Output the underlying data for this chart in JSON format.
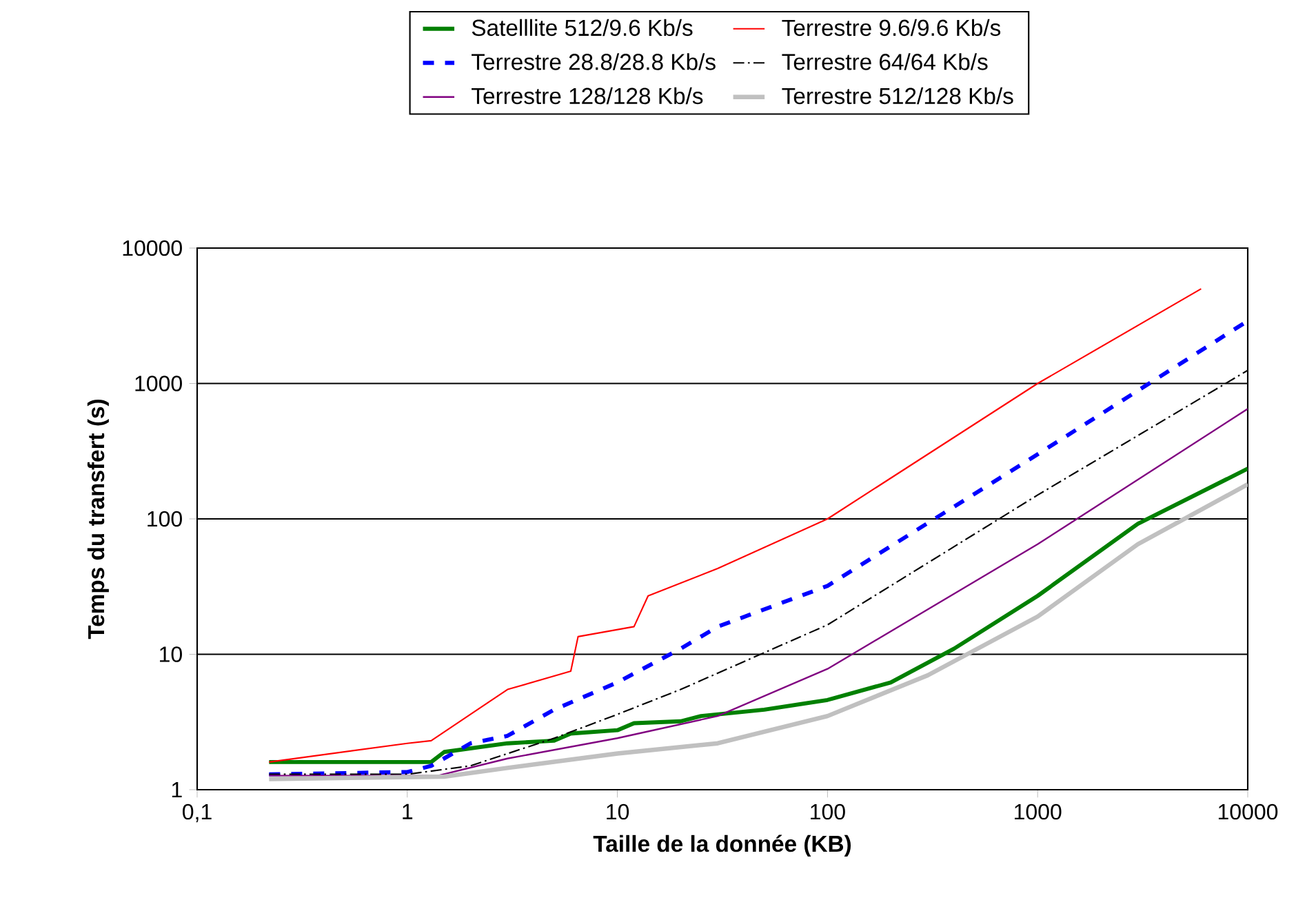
{
  "chart_data": {
    "type": "line",
    "xlabel": "Taille de la donnée (KB)",
    "ylabel": "Temps du transfert (s)",
    "log": "xy",
    "grid": "y",
    "legend": "top",
    "marker": "none",
    "xlim": [
      0.1,
      10000
    ],
    "ylim": [
      1,
      10000
    ],
    "xticks": [
      {
        "value": 0.1,
        "label": "0,1"
      },
      1,
      10,
      100,
      1000,
      10000
    ],
    "yticks": [
      1,
      10,
      100,
      1000,
      10000
    ],
    "series": [
      {
        "name": "Satelllite 512/9.6 Kb/s",
        "color": "#008000",
        "line_style": "solid",
        "x": [
          0.22,
          1.3,
          1.5,
          3,
          5,
          6,
          10,
          12,
          20,
          25,
          50,
          100,
          200,
          400,
          1000,
          3000,
          10000
        ],
        "values": [
          1.6,
          1.6,
          1.9,
          2.2,
          2.3,
          2.6,
          2.75,
          3.1,
          3.2,
          3.5,
          3.9,
          4.6,
          6.2,
          11,
          27,
          92,
          235
        ]
      },
      {
        "name": "Terrestre 9.6/9.6 Kb/s",
        "color": "#ff0000",
        "line_style": "solid",
        "x": [
          0.22,
          1,
          1.3,
          3,
          6,
          6.5,
          12,
          14,
          30,
          100,
          1000,
          6000
        ],
        "values": [
          1.6,
          2.2,
          2.3,
          5.5,
          7.5,
          13.5,
          16,
          27,
          43,
          100,
          1000,
          5000
        ]
      },
      {
        "name": "Terrestre 28.8/28.8 Kb/s",
        "color": "#0000ff",
        "line_style": "dashed",
        "x": [
          0.22,
          1,
          1.3,
          2,
          3,
          5,
          10,
          20,
          30,
          100,
          1000,
          10000
        ],
        "values": [
          1.3,
          1.35,
          1.5,
          2.2,
          2.5,
          3.9,
          6.2,
          11,
          16,
          32,
          300,
          2900
        ]
      },
      {
        "name": "Terrestre 64/64 Kb/s",
        "color": "#000000",
        "line_style": "dashdot",
        "x": [
          0.22,
          1,
          2,
          5,
          10,
          20,
          100,
          1000,
          10000
        ],
        "values": [
          1.3,
          1.3,
          1.5,
          2.4,
          3.6,
          5.5,
          16.5,
          150,
          1250
        ]
      },
      {
        "name": "Terrestre 128/128 Kb/s",
        "color": "#800080",
        "line_style": "solid",
        "x": [
          0.22,
          1.4,
          3,
          10,
          30,
          100,
          1000,
          10000
        ],
        "values": [
          1.27,
          1.27,
          1.7,
          2.4,
          3.5,
          7.8,
          65,
          650
        ]
      },
      {
        "name": "Terrestre 512/128 Kb/s",
        "color": "#c0c0c0",
        "line_style": "solid",
        "x": [
          0.22,
          1.5,
          3,
          10,
          30,
          100,
          300,
          1000,
          3000,
          10000
        ],
        "values": [
          1.2,
          1.25,
          1.45,
          1.85,
          2.2,
          3.5,
          7,
          19,
          65,
          180
        ]
      }
    ]
  }
}
